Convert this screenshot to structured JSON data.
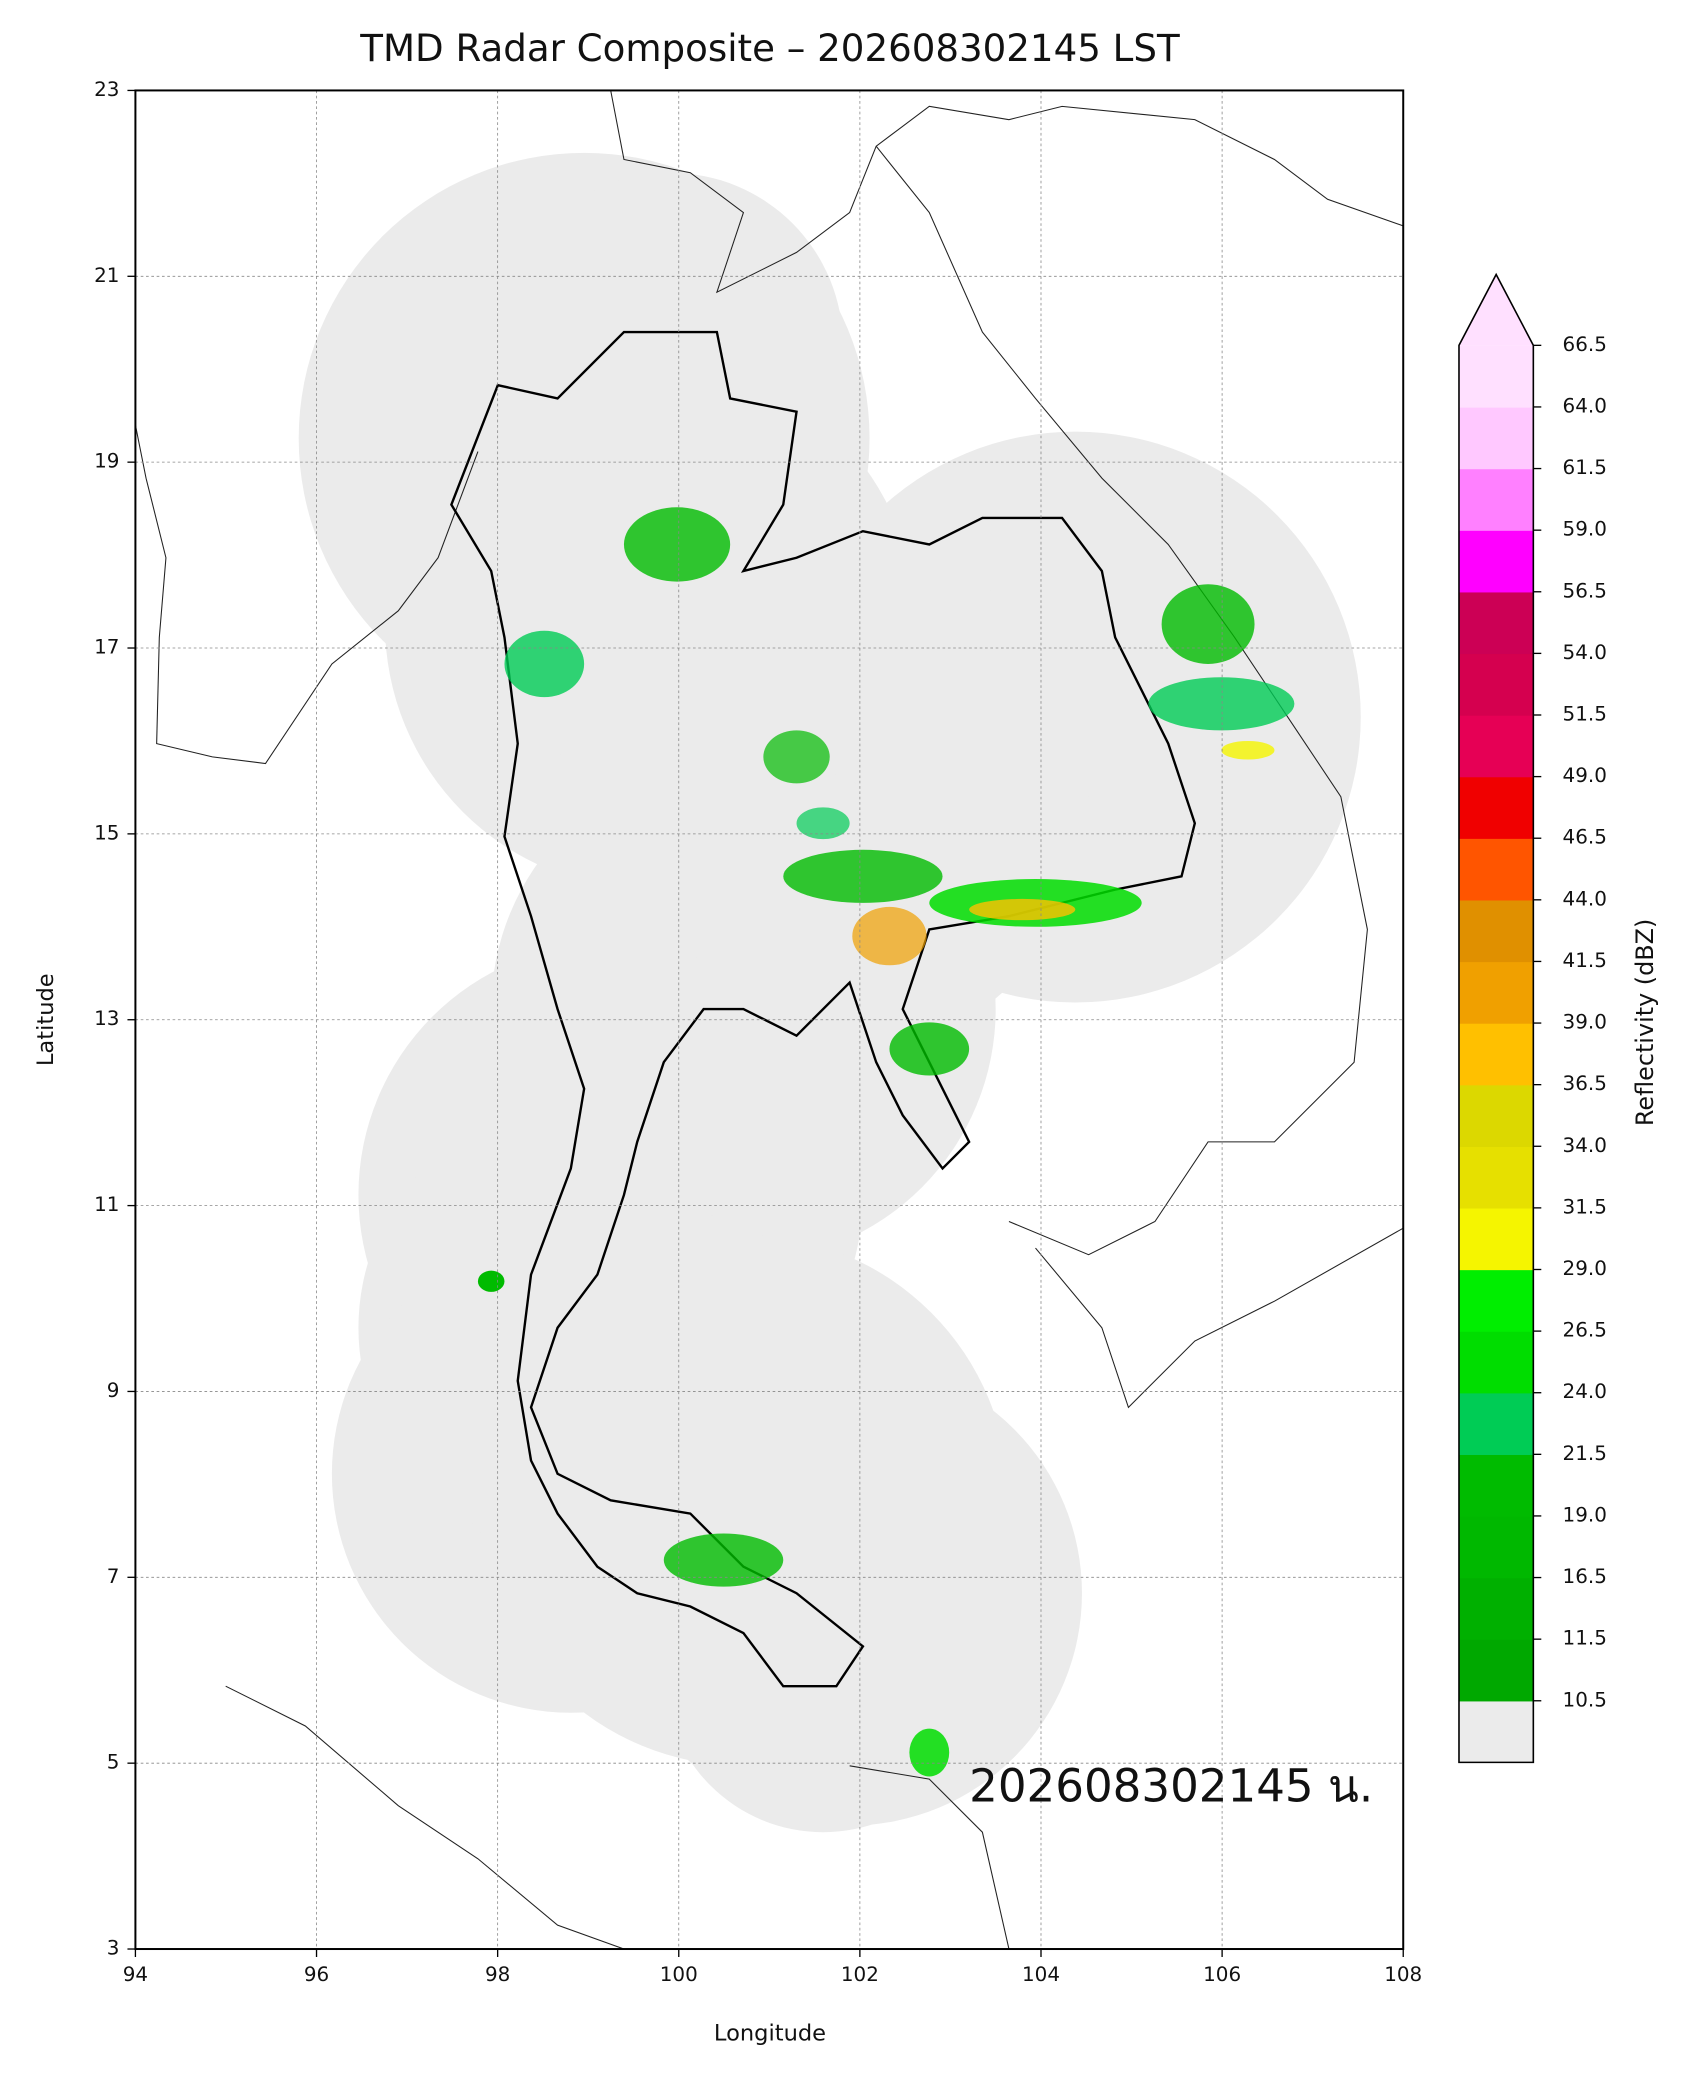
{
  "chart_data": {
    "type": "map",
    "title": "TMD Radar Composite – 202608302145 LST",
    "x_label": "Longitude",
    "y_label": "Latitude",
    "xlim": [
      94,
      108
    ],
    "ylim": [
      3,
      23
    ],
    "xticks": [
      94,
      96,
      98,
      100,
      102,
      104,
      106,
      108
    ],
    "yticks": [
      3,
      5,
      7,
      9,
      11,
      13,
      15,
      17,
      19,
      21,
      23
    ],
    "grid": true,
    "annotation": "202608302145 น.",
    "colorbar": {
      "label": "Reflectivity (dBZ)",
      "ticks": [
        10.5,
        {
          "value": 11.5,
          "label": "11.5"
        },
        16.5,
        {
          "value": 19,
          "label": "19.0"
        },
        21.5,
        {
          "value": 24,
          "label": "24.0"
        },
        26.5,
        {
          "value": 29,
          "label": "29.0"
        },
        31.5,
        {
          "value": 34,
          "label": "34.0"
        },
        36.5,
        {
          "value": 39,
          "label": "39.0"
        },
        41.5,
        {
          "value": 44,
          "label": "44.0"
        },
        46.5,
        {
          "value": 49,
          "label": "49.0"
        },
        51.5,
        {
          "value": 54,
          "label": "54.0"
        },
        56.5,
        {
          "value": 59,
          "label": "59.0"
        },
        61.5,
        {
          "value": 64,
          "label": "64.0"
        },
        66.5
      ],
      "under_color": "#ebebeb",
      "over_color": "#ffe0ff",
      "colors": [
        "#00a800",
        "#00b000",
        "#00b800",
        "#00bb00",
        "#00cc55",
        "#00dd00",
        "#00ee00",
        "#f5f500",
        "#e6e000",
        "#dcd800",
        "#ffc000",
        "#f0a000",
        "#e09000",
        "#ff5500",
        "#f00000",
        "#e60055",
        "#d5004f",
        "#cc0055",
        "#ff00ff",
        "#ff80ff",
        "#ffc8ff",
        "#ffe0ff"
      ]
    }
  }
}
